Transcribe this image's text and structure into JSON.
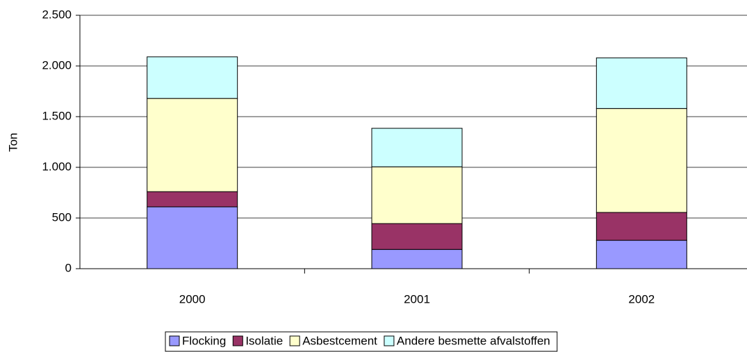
{
  "chart_data": {
    "type": "stacked_bar",
    "ylabel": "Ton",
    "categories": [
      "2000",
      "2001",
      "2002"
    ],
    "series": [
      {
        "name": "Flocking",
        "color": "#9999ff",
        "values": [
          610,
          190,
          280
        ]
      },
      {
        "name": "Isolatie",
        "color": "#993366",
        "values": [
          150,
          255,
          275
        ]
      },
      {
        "name": "Asbestcement",
        "color": "#ffffcc",
        "values": [
          920,
          560,
          1025
        ]
      },
      {
        "name": "Andere besmette afvalstoffen",
        "color": "#ccffff",
        "values": [
          410,
          380,
          500
        ]
      }
    ],
    "ylim": [
      0,
      2500
    ],
    "yticks": [
      0,
      500,
      {
        "value": 1000,
        "label": "1.000"
      },
      {
        "value": 1500,
        "label": "1.500"
      },
      {
        "value": 2000,
        "label": "2.000"
      },
      {
        "value": 2500,
        "label": "2.500"
      }
    ],
    "grid": true,
    "legend": "bottom"
  }
}
